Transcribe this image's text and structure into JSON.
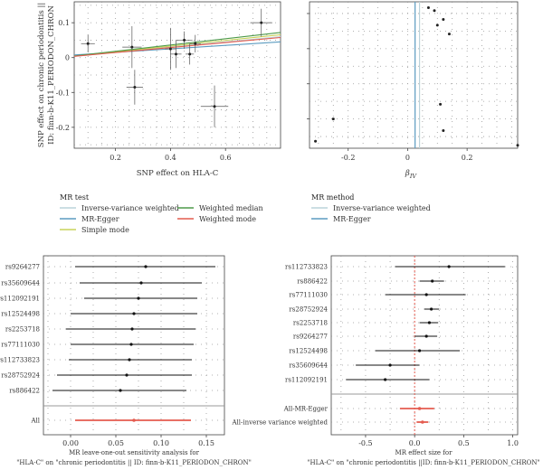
{
  "colors": {
    "ivw": "#bcd3da",
    "egger": "#5b9bc0",
    "simple": "#c8d35a",
    "wmedian": "#4e9a4a",
    "wmode": "#e45b4f",
    "point": "#222222",
    "errbar": "#555555"
  },
  "chart_data": [
    {
      "type": "scatter",
      "title": "",
      "xlabel": "SNP effect on HLA-C",
      "ylabel_line1": "SNP effect on chronic periodontitis ||",
      "ylabel_line2": "ID: finn-b-K11_PERIODON_CHRON",
      "xlim": [
        0.05,
        0.8
      ],
      "ylim": [
        -0.26,
        0.16
      ],
      "xticks": [
        "0.2",
        "0.4",
        "0.6"
      ],
      "yticks": [
        "0.1",
        "0",
        "-0.1",
        "-0.2"
      ],
      "grid": true,
      "points": [
        {
          "x": 0.1,
          "y": 0.04,
          "xerr": 0.025,
          "yerr": 0.025
        },
        {
          "x": 0.26,
          "y": 0.03,
          "xerr": 0.035,
          "yerr": 0.06
        },
        {
          "x": 0.27,
          "y": -0.085,
          "xerr": 0.03,
          "yerr": 0.05
        },
        {
          "x": 0.4,
          "y": 0.025,
          "xerr": 0.02,
          "yerr": 0.06
        },
        {
          "x": 0.42,
          "y": 0.01,
          "xerr": 0.02,
          "yerr": 0.04
        },
        {
          "x": 0.45,
          "y": 0.05,
          "xerr": 0.03,
          "yerr": 0.025
        },
        {
          "x": 0.47,
          "y": 0.01,
          "xerr": 0.015,
          "yerr": 0.03
        },
        {
          "x": 0.49,
          "y": 0.04,
          "xerr": 0.02,
          "yerr": 0.025
        },
        {
          "x": 0.56,
          "y": -0.14,
          "xerr": 0.05,
          "yerr": 0.06
        },
        {
          "x": 0.73,
          "y": 0.1,
          "xerr": 0.04,
          "yerr": 0.04
        }
      ],
      "lines": [
        {
          "method": "ivw",
          "slope": 0.075,
          "intercept": 0
        },
        {
          "method": "egger",
          "slope": 0.05,
          "intercept": 0.005
        },
        {
          "method": "simple",
          "slope": 0.082,
          "intercept": 0
        },
        {
          "method": "wmedian",
          "slope": 0.09,
          "intercept": 0
        },
        {
          "method": "wmode",
          "slope": 0.072,
          "intercept": 0
        }
      ],
      "legend_title": "MR test",
      "legend": [
        {
          "label": "Inverse-variance weighted",
          "method": "ivw"
        },
        {
          "label": "MR-Egger",
          "method": "egger"
        },
        {
          "label": "Simple mode",
          "method": "simple"
        },
        {
          "label": "Weighted median",
          "method": "wmedian"
        },
        {
          "label": "Weighted mode",
          "method": "wmode"
        }
      ]
    },
    {
      "type": "scatter",
      "title": "",
      "xlabel_main": "β",
      "xlabel_sub": "IV",
      "xlim": [
        -0.33,
        0.37
      ],
      "xticks": [
        "-0.2",
        "0",
        "0.2"
      ],
      "grid": true,
      "points": [
        {
          "x": -0.31,
          "y": 1.2
        },
        {
          "x": -0.25,
          "y": 5.0
        },
        {
          "x": 0.07,
          "y": 24.0
        },
        {
          "x": 0.09,
          "y": 23.5
        },
        {
          "x": 0.1,
          "y": 21.0
        },
        {
          "x": 0.11,
          "y": 7.5
        },
        {
          "x": 0.12,
          "y": 22.0
        },
        {
          "x": 0.12,
          "y": 3.0
        },
        {
          "x": 0.14,
          "y": 19.5
        },
        {
          "x": 0.37,
          "y": 0.5
        }
      ],
      "ylim": [
        0,
        25
      ],
      "vlines": [
        {
          "method": "ivw",
          "x": 0.04
        },
        {
          "method": "egger",
          "x": 0.025
        }
      ],
      "legend_title": "MR method",
      "legend": [
        {
          "label": "Inverse-variance weighted",
          "method": "ivw"
        },
        {
          "label": "MR-Egger",
          "method": "egger"
        }
      ]
    },
    {
      "type": "forest",
      "xlim": [
        -0.03,
        0.17
      ],
      "xticks": [
        "0.00",
        "0.05",
        "0.10",
        "0.15"
      ],
      "rows": [
        {
          "label": "rs9264277",
          "est": 0.083,
          "lo": 0.005,
          "hi": 0.16
        },
        {
          "label": "rs35609644",
          "est": 0.078,
          "lo": 0.01,
          "hi": 0.145
        },
        {
          "label": "rs112092191",
          "est": 0.075,
          "lo": 0.015,
          "hi": 0.14
        },
        {
          "label": "rs12524498",
          "est": 0.07,
          "lo": 0.0,
          "hi": 0.14
        },
        {
          "label": "rs2253718",
          "est": 0.068,
          "lo": -0.005,
          "hi": 0.138
        },
        {
          "label": "rs77111030",
          "est": 0.067,
          "lo": 0.0,
          "hi": 0.136
        },
        {
          "label": "rs112733823",
          "est": 0.065,
          "lo": -0.002,
          "hi": 0.134
        },
        {
          "label": "rs28752924",
          "est": 0.062,
          "lo": -0.015,
          "hi": 0.134
        },
        {
          "label": "rs886422",
          "est": 0.055,
          "lo": -0.02,
          "hi": 0.128
        }
      ],
      "summary": [
        {
          "label": "All",
          "est": 0.07,
          "lo": 0.005,
          "hi": 0.133
        }
      ],
      "caption_line1": "MR leave-one-out sensitivity analysis for",
      "caption_line2": "\"HLA-C\" on \"chronic periodontitis || ID: finn-b-K11_PERIODON_CHRON\""
    },
    {
      "type": "forest",
      "xlim": [
        -0.85,
        1.05
      ],
      "xticks": [
        "-0.5",
        "0.0",
        "0.5",
        "1.0"
      ],
      "rows": [
        {
          "label": "rs112733823",
          "est": 0.35,
          "lo": -0.2,
          "hi": 0.92
        },
        {
          "label": "rs886422",
          "est": 0.18,
          "lo": 0.05,
          "hi": 0.3
        },
        {
          "label": "rs77111030",
          "est": 0.12,
          "lo": -0.3,
          "hi": 0.52
        },
        {
          "label": "rs28752924",
          "est": 0.17,
          "lo": 0.1,
          "hi": 0.25
        },
        {
          "label": "rs2253718",
          "est": 0.15,
          "lo": 0.05,
          "hi": 0.24
        },
        {
          "label": "rs9264277",
          "est": 0.12,
          "lo": 0.0,
          "hi": 0.23
        },
        {
          "label": "rs12524498",
          "est": 0.05,
          "lo": -0.4,
          "hi": 0.46
        },
        {
          "label": "rs35609644",
          "est": -0.25,
          "lo": -0.6,
          "hi": 0.05
        },
        {
          "label": "rs112092191",
          "est": -0.3,
          "lo": -0.7,
          "hi": 0.15
        }
      ],
      "summary": [
        {
          "label": "All-MR-Egger",
          "est": 0.05,
          "lo": -0.15,
          "hi": 0.2
        },
        {
          "label": "All-inverse variance weighted",
          "est": 0.08,
          "lo": 0.02,
          "hi": 0.14
        }
      ],
      "caption_line1": "MR effect size for",
      "caption_line2": "\"HLA-C\" on \"chronic periodontitis ||ID: finn-b-K11_PERIODON_CHRON\""
    }
  ]
}
